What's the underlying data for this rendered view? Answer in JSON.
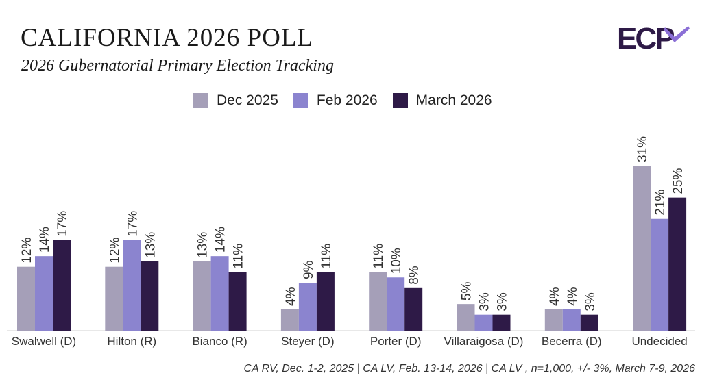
{
  "chart_data": {
    "type": "bar",
    "title": "CALIFORNIA 2026 POLL",
    "subtitle": "2026 Gubernatorial Primary Election Tracking",
    "categories": [
      "Swalwell (D)",
      "Hilton (R)",
      "Bianco (R)",
      "Steyer (D)",
      "Porter (D)",
      "Villaraigosa (D)",
      "Becerra (D)",
      "Undecided"
    ],
    "series": [
      {
        "name": "Dec 2025",
        "color": "#a59fb8",
        "values": [
          12,
          12,
          13,
          4,
          11,
          5,
          4,
          31
        ],
        "labels": [
          "12%",
          "12%",
          "13%",
          "4%",
          "11%",
          "5%",
          "4%",
          "31%"
        ]
      },
      {
        "name": "Feb 2026",
        "color": "#8b84cf",
        "values": [
          14,
          17,
          14,
          9,
          10,
          3,
          4,
          21
        ],
        "labels": [
          "14%",
          "17%",
          "14%",
          "9%",
          "10%",
          "3%",
          "4%",
          "21%"
        ]
      },
      {
        "name": "March 2026",
        "color": "#2e1a47",
        "values": [
          17,
          13,
          11,
          11,
          8,
          3,
          3,
          25
        ],
        "labels": [
          "17%",
          "13%",
          "11%",
          "11%",
          "8%",
          "3%",
          "3%",
          "25%"
        ]
      }
    ],
    "ylim": [
      0,
      31
    ],
    "xlabel": "",
    "ylabel": "",
    "grid": false,
    "legend": "top-center"
  },
  "logo_text": "ECP",
  "footnote": "CA RV, Dec. 1-2, 2025 | CA LV, Feb. 13-14, 2026 | CA LV , n=1,000, +/- 3%, March 7-9, 2026"
}
